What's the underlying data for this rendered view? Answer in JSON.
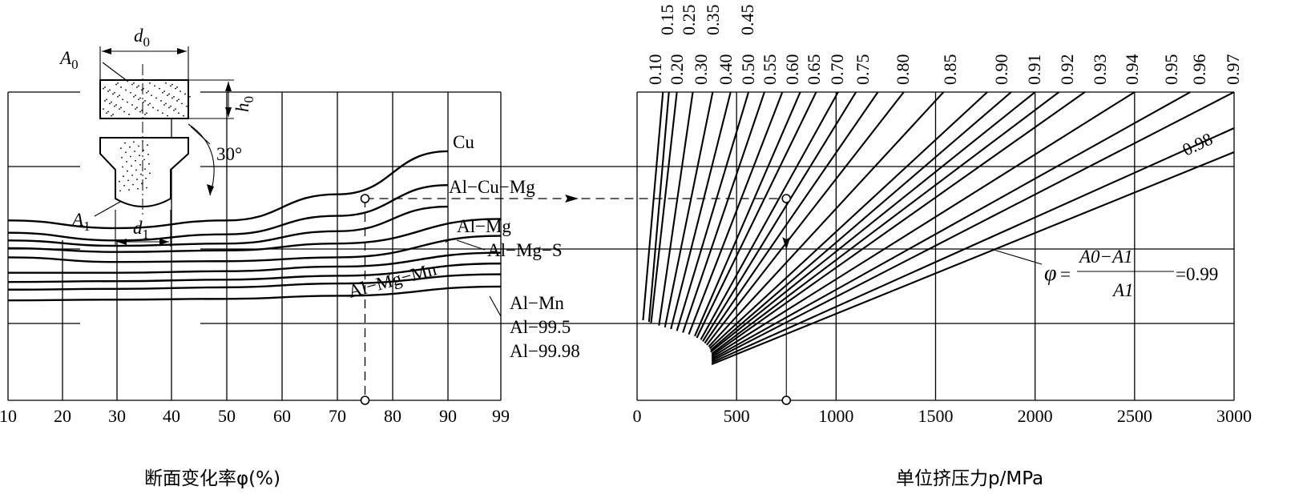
{
  "chart_data": {
    "type": "line",
    "left_panel": {
      "x_ticks": [
        "10",
        "20",
        "30",
        "40",
        "50",
        "60",
        "70",
        "80",
        "90",
        "99"
      ],
      "x_title": "断面变化率φ(%)",
      "series": [
        {
          "name": "Cu",
          "x": [
            10,
            30,
            50,
            70,
            90
          ],
          "y": [
            1170,
            1120,
            1170,
            1340,
            1620
          ]
        },
        {
          "name": "Al−Cu−Mg",
          "x": [
            10,
            30,
            50,
            70,
            90
          ],
          "y": [
            1090,
            1040,
            1080,
            1200,
            1400
          ]
        },
        {
          "name": "Al−Mg",
          "x": [
            10,
            30,
            50,
            70,
            90
          ],
          "y": [
            1040,
            1005,
            1020,
            1100,
            1260
          ]
        },
        {
          "name": "Al−Mg−S",
          "x": [
            10,
            30,
            50,
            70,
            99
          ],
          "y": [
            990,
            965,
            975,
            1020,
            1180
          ]
        },
        {
          "name": "Al−Mg−Mn",
          "x": [
            10,
            30,
            50,
            70,
            99
          ],
          "y": [
            930,
            900,
            905,
            930,
            1070
          ]
        },
        {
          "name": "Al−Mn",
          "x": [
            10,
            30,
            50,
            70,
            99
          ],
          "y": [
            830,
            830,
            840,
            870,
            960
          ]
        },
        {
          "name": "Al−99.5",
          "x": [
            10,
            30,
            50,
            70,
            99
          ],
          "y": [
            770,
            775,
            785,
            810,
            890
          ]
        },
        {
          "name": "Al−99.98",
          "x": [
            10,
            30,
            50,
            70,
            99
          ],
          "y": [
            720,
            725,
            735,
            760,
            820
          ]
        },
        {
          "name": "",
          "x": [
            10,
            30,
            50,
            70,
            99
          ],
          "y": [
            650,
            655,
            660,
            680,
            740
          ]
        }
      ],
      "example": {
        "phi": 75,
        "reading": "Al−Cu−Mg"
      }
    },
    "right_panel": {
      "x_ticks": [
        "0",
        "500",
        "1000",
        "1500",
        "2000",
        "2500",
        "3000"
      ],
      "x_title": "单位挤压力p/MPa",
      "xlim": [
        0,
        3000
      ],
      "fan_lines": [
        {
          "label": "0.10",
          "p_top": 130,
          "p_bottom": 30
        },
        {
          "label": "0.15",
          "p_top": 160,
          "p_bottom": 60
        },
        {
          "label": "0.20",
          "p_top": 200,
          "p_bottom": 70
        },
        {
          "label": "0.25",
          "p_top": 280,
          "p_bottom": 110
        },
        {
          "label": "0.30",
          "p_top": 380,
          "p_bottom": 140
        },
        {
          "label": "0.35",
          "p_top": 470,
          "p_bottom": 170
        },
        {
          "label": "0.40",
          "p_top": 560,
          "p_bottom": 200
        },
        {
          "label": "0.45",
          "p_top": 640,
          "p_bottom": 230
        },
        {
          "label": "0.50",
          "p_top": 730,
          "p_bottom": 260
        },
        {
          "label": "0.55",
          "p_top": 820,
          "p_bottom": 290
        },
        {
          "label": "0.60",
          "p_top": 900,
          "p_bottom": 300
        },
        {
          "label": "0.65",
          "p_top": 1010,
          "p_bottom": 320
        },
        {
          "label": "0.70",
          "p_top": 1100,
          "p_bottom": 330
        },
        {
          "label": "0.75",
          "p_top": 1210,
          "p_bottom": 340
        },
        {
          "label": "0.80",
          "p_top": 1340,
          "p_bottom": 350
        },
        {
          "label": "0.85",
          "p_top": 1540,
          "p_bottom": 360
        },
        {
          "label": "0.90",
          "p_top": 1760,
          "p_bottom": 365
        },
        {
          "label": "0.91",
          "p_top": 1880,
          "p_bottom": 370
        },
        {
          "label": "0.92",
          "p_top": 2000,
          "p_bottom": 370
        },
        {
          "label": "0.93",
          "p_top": 2120,
          "p_bottom": 375
        },
        {
          "label": "0.94",
          "p_top": 2250,
          "p_bottom": 375
        },
        {
          "label": "0.95",
          "p_top": 2500,
          "p_bottom": 375
        },
        {
          "label": "0.96",
          "p_top": 2780,
          "p_bottom": 375
        },
        {
          "label": "0.97",
          "p_top": 3000,
          "p_bottom": 375
        },
        {
          "label": "0.98",
          "p_top": 3000,
          "p_bottom": 375
        },
        {
          "label": "0.99",
          "p_top": 3000,
          "p_bottom": 375
        }
      ],
      "example_p": 750,
      "formula": {
        "phi": "φ",
        "eq": "=",
        "numerator": "A0−A1",
        "denominator": "A1",
        "value": "=0.99"
      }
    },
    "inset": {
      "d0": "d0",
      "A0": "A0",
      "h0": "h0",
      "A1": "A1",
      "d1": "d1",
      "angle": "30°"
    },
    "grid": true
  }
}
